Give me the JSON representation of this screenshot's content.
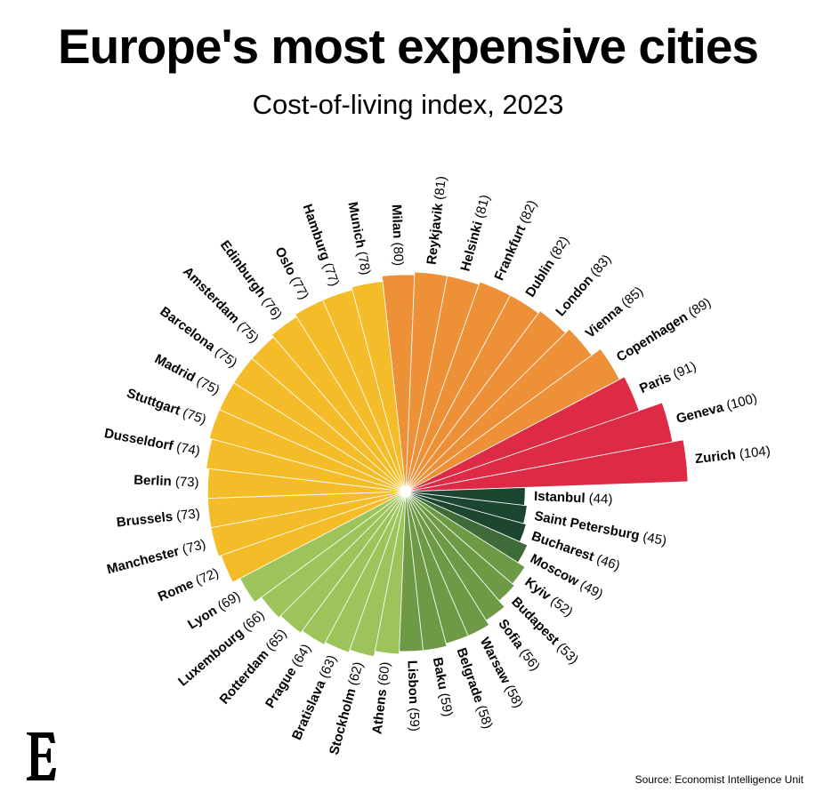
{
  "title": "Europe's most expensive cities",
  "subtitle": "Cost-of-living index, 2023",
  "source": "Source: Economist Intelligence Unit",
  "logo_letter": "E",
  "colors": {
    "red": "#DD2A45",
    "orange": "#EE9038",
    "yellow": "#F4BC28",
    "light_green": "#9CC45A",
    "mid_green": "#6E9A45",
    "dark_green": "#3F6B39",
    "darkest_green": "#1C4630"
  },
  "chart_data": {
    "type": "radial-bar",
    "series": [
      {
        "values": [
          104,
          100,
          91,
          89,
          85,
          83,
          82,
          82,
          81,
          81,
          80,
          78,
          77,
          77,
          76,
          75,
          75,
          75,
          75,
          74,
          73,
          73,
          73,
          72,
          69,
          66,
          65,
          64,
          63,
          62,
          60,
          59,
          59,
          58,
          58,
          56,
          53,
          52,
          49,
          46,
          45,
          44
        ]
      }
    ],
    "categories": [
      "Zurich",
      "Geneva",
      "Paris",
      "Copenhagen",
      "Vienna",
      "London",
      "Dublin",
      "Frankfurt",
      "Helsinki",
      "Reykjavik",
      "Milan",
      "Munich",
      "Hamburg",
      "Oslo",
      "Edinburgh",
      "Amsterdam",
      "Barcelona",
      "Madrid",
      "Stuttgart",
      "Dusseldorf",
      "Berlin",
      "Brussels",
      "Manchester",
      "Rome",
      "Lyon",
      "Luxembourg",
      "Rotterdam",
      "Prague",
      "Bratislava",
      "Stockholm",
      "Athens",
      "Lisbon",
      "Baku",
      "Belgrade",
      "Warsaw",
      "Sofia",
      "Budapest",
      "Kyiv",
      "Moscow",
      "Bucharest",
      "Saint Petersburg",
      "Istanbul"
    ],
    "labels": [
      "Zurich (104)",
      "Geneva (100)",
      "Paris (91)",
      "Copenhagen (89)",
      "Vienna (85)",
      "London (83)",
      "Dublin (82)",
      "Frankfurt (82)",
      "Helsinki (81)",
      "Reykjavik (81)",
      "Milan (80)",
      "Munich (78)",
      "Hamburg (77)",
      "Oslo (77)",
      "Edinburgh (76)",
      "Amsterdam (75)",
      "Barcelona (75)",
      "Madrid (75)",
      "Stuttgart (75)",
      "Dusseldorf (74)",
      "Berlin (73)",
      "Brussels (73)",
      "Manchester (73)",
      "Rome (72)",
      "Lyon (69)",
      "Luxembourg (66)",
      "Rotterdam (65)",
      "Prague (64)",
      "Bratislava (63)",
      "Stockholm (62)",
      "Athens (60)",
      "Lisbon (59)",
      "Baku (59)",
      "Belgrade (58)",
      "Warsaw (58)",
      "Sofia (56)",
      "Budapest (53)",
      "Kyiv (52)",
      "Moscow (49)",
      "Bucharest (46)",
      "Saint Petersburg (45)",
      "Istanbul (44)"
    ],
    "colors": [
      "red",
      "red",
      "red",
      "orange",
      "orange",
      "orange",
      "orange",
      "orange",
      "orange",
      "orange",
      "orange",
      "yellow",
      "yellow",
      "yellow",
      "yellow",
      "yellow",
      "yellow",
      "yellow",
      "yellow",
      "yellow",
      "yellow",
      "yellow",
      "yellow",
      "yellow",
      "light_green",
      "light_green",
      "light_green",
      "light_green",
      "light_green",
      "light_green",
      "light_green",
      "mid_green",
      "mid_green",
      "mid_green",
      "mid_green",
      "mid_green",
      "mid_green",
      "mid_green",
      "dark_green",
      "darkest_green",
      "darkest_green",
      "darkest_green"
    ]
  }
}
